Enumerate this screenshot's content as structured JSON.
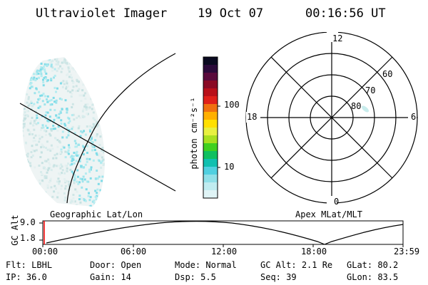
{
  "header": {
    "instrument": "Ultraviolet Imager",
    "date": "19 Oct 07",
    "time": "00:16:56 UT"
  },
  "colorbar": {
    "unit_label": "photon cm⁻²s⁻¹",
    "ticks": [
      "100",
      "10"
    ],
    "colors": [
      "#0a0a20",
      "#2b0a3a",
      "#5a0a3c",
      "#8a0a25",
      "#b8101a",
      "#e0201a",
      "#f07010",
      "#ffb000",
      "#ffe000",
      "#e8f040",
      "#a8e020",
      "#40d020",
      "#10c060",
      "#10c0b0",
      "#50d0e0",
      "#90e0e8",
      "#c0ecf0",
      "#e0f4f6"
    ]
  },
  "polar": {
    "mlt_labels": {
      "top": "12",
      "bottom": "0",
      "left": "18",
      "right": "6"
    },
    "lat_labels": [
      "60",
      "70",
      "80"
    ]
  },
  "timeline": {
    "left_title": "Geographic Lat/Lon",
    "right_title": "Apex MLat/MLT",
    "yaxis_label": "GC Alt",
    "yticks": [
      "9.0",
      "1.8"
    ],
    "xticks": [
      "00:00",
      "06:00",
      "12:00",
      "18:00",
      "23:59"
    ],
    "marker_color": "#ff0000"
  },
  "footer": {
    "row1": [
      {
        "label": "Flt:",
        "value": "LBHL"
      },
      {
        "label": "Door:",
        "value": "Open"
      },
      {
        "label": "Mode:",
        "value": "Normal"
      },
      {
        "label": "GC Alt:",
        "value": "2.1 Re"
      },
      {
        "label": "GLat:",
        "value": "80.2"
      }
    ],
    "row2": [
      {
        "label": "IP:",
        "value": "36.0"
      },
      {
        "label": "Gain:",
        "value": "14"
      },
      {
        "label": "Dsp:",
        "value": "5.5"
      },
      {
        "label": "Seq:",
        "value": "39"
      },
      {
        "label": "GLon:",
        "value": "83.5"
      }
    ]
  }
}
